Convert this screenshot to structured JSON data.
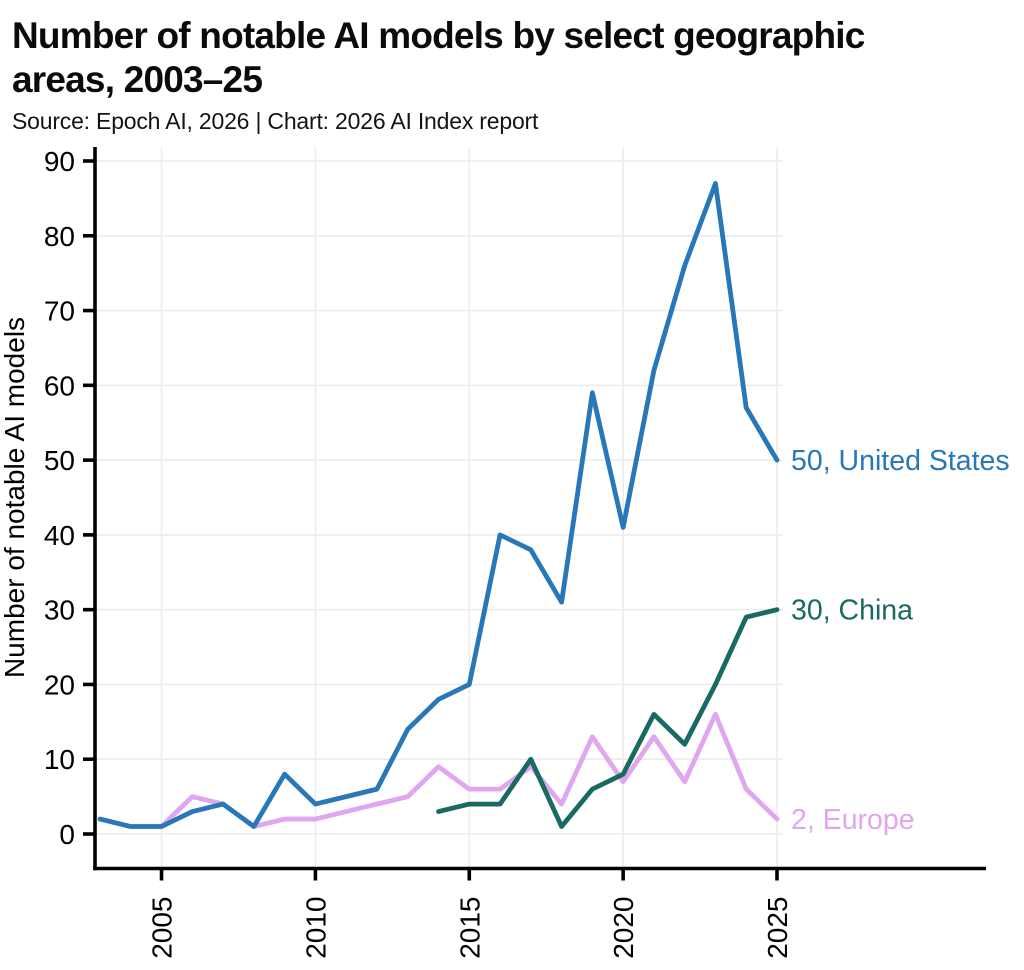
{
  "header": {
    "title_lines": {
      "0": "Number of notable AI models by select geographic",
      "1": "areas, 2003–25"
    },
    "full_title": "Number of notable AI models by select geographic areas, 2003–25",
    "source": "Source: Epoch AI, 2026 | Chart: 2026 AI Index report"
  },
  "chart_data": {
    "type": "line",
    "title": "Number of notable AI models by select geographic areas, 2003–25",
    "xlabel": "",
    "ylabel": "Number of notable AI models",
    "xlim": [
      2003,
      2025
    ],
    "ylim": [
      0,
      90
    ],
    "xticks": [
      2005,
      2010,
      2015,
      2020,
      2025
    ],
    "yticks": [
      0,
      10,
      20,
      30,
      40,
      50,
      60,
      70,
      80,
      90
    ],
    "grid": true,
    "legend_position": "end-of-line-labels",
    "colors": {
      "united_states": "#2878b9",
      "china": "#186a62",
      "europe": "#e0a6f0",
      "gridline": "#ececec",
      "axis": "#000000"
    },
    "series": [
      {
        "name": "Europe",
        "end_label": "2, Europe",
        "color": "#e0a6f0",
        "x": [
          2005,
          2006,
          2007,
          2008,
          2009,
          2010,
          2011,
          2012,
          2013,
          2014,
          2015,
          2016,
          2017,
          2018,
          2019,
          2020,
          2021,
          2022,
          2023,
          2024,
          2025
        ],
        "values": [
          1,
          5,
          4,
          1,
          2,
          2,
          3,
          4,
          5,
          9,
          6,
          6,
          9,
          4,
          13,
          7,
          13,
          7,
          16,
          6,
          2
        ]
      },
      {
        "name": "China",
        "end_label": "30, China",
        "color": "#186a62",
        "x": [
          2014,
          2015,
          2016,
          2017,
          2018,
          2019,
          2020,
          2021,
          2022,
          2023,
          2024,
          2025
        ],
        "values": [
          3,
          4,
          4,
          10,
          1,
          6,
          8,
          16,
          12,
          20,
          29,
          30
        ]
      },
      {
        "name": "United States",
        "end_label": "50, United States",
        "color": "#2878b9",
        "x": [
          2003,
          2004,
          2005,
          2006,
          2007,
          2008,
          2009,
          2010,
          2011,
          2012,
          2013,
          2014,
          2015,
          2016,
          2017,
          2018,
          2019,
          2020,
          2021,
          2022,
          2023,
          2024,
          2025
        ],
        "values": [
          2,
          1,
          1,
          3,
          4,
          1,
          8,
          4,
          5,
          6,
          14,
          18,
          20,
          40,
          38,
          31,
          59,
          41,
          62,
          76,
          87,
          57,
          50
        ]
      }
    ]
  }
}
